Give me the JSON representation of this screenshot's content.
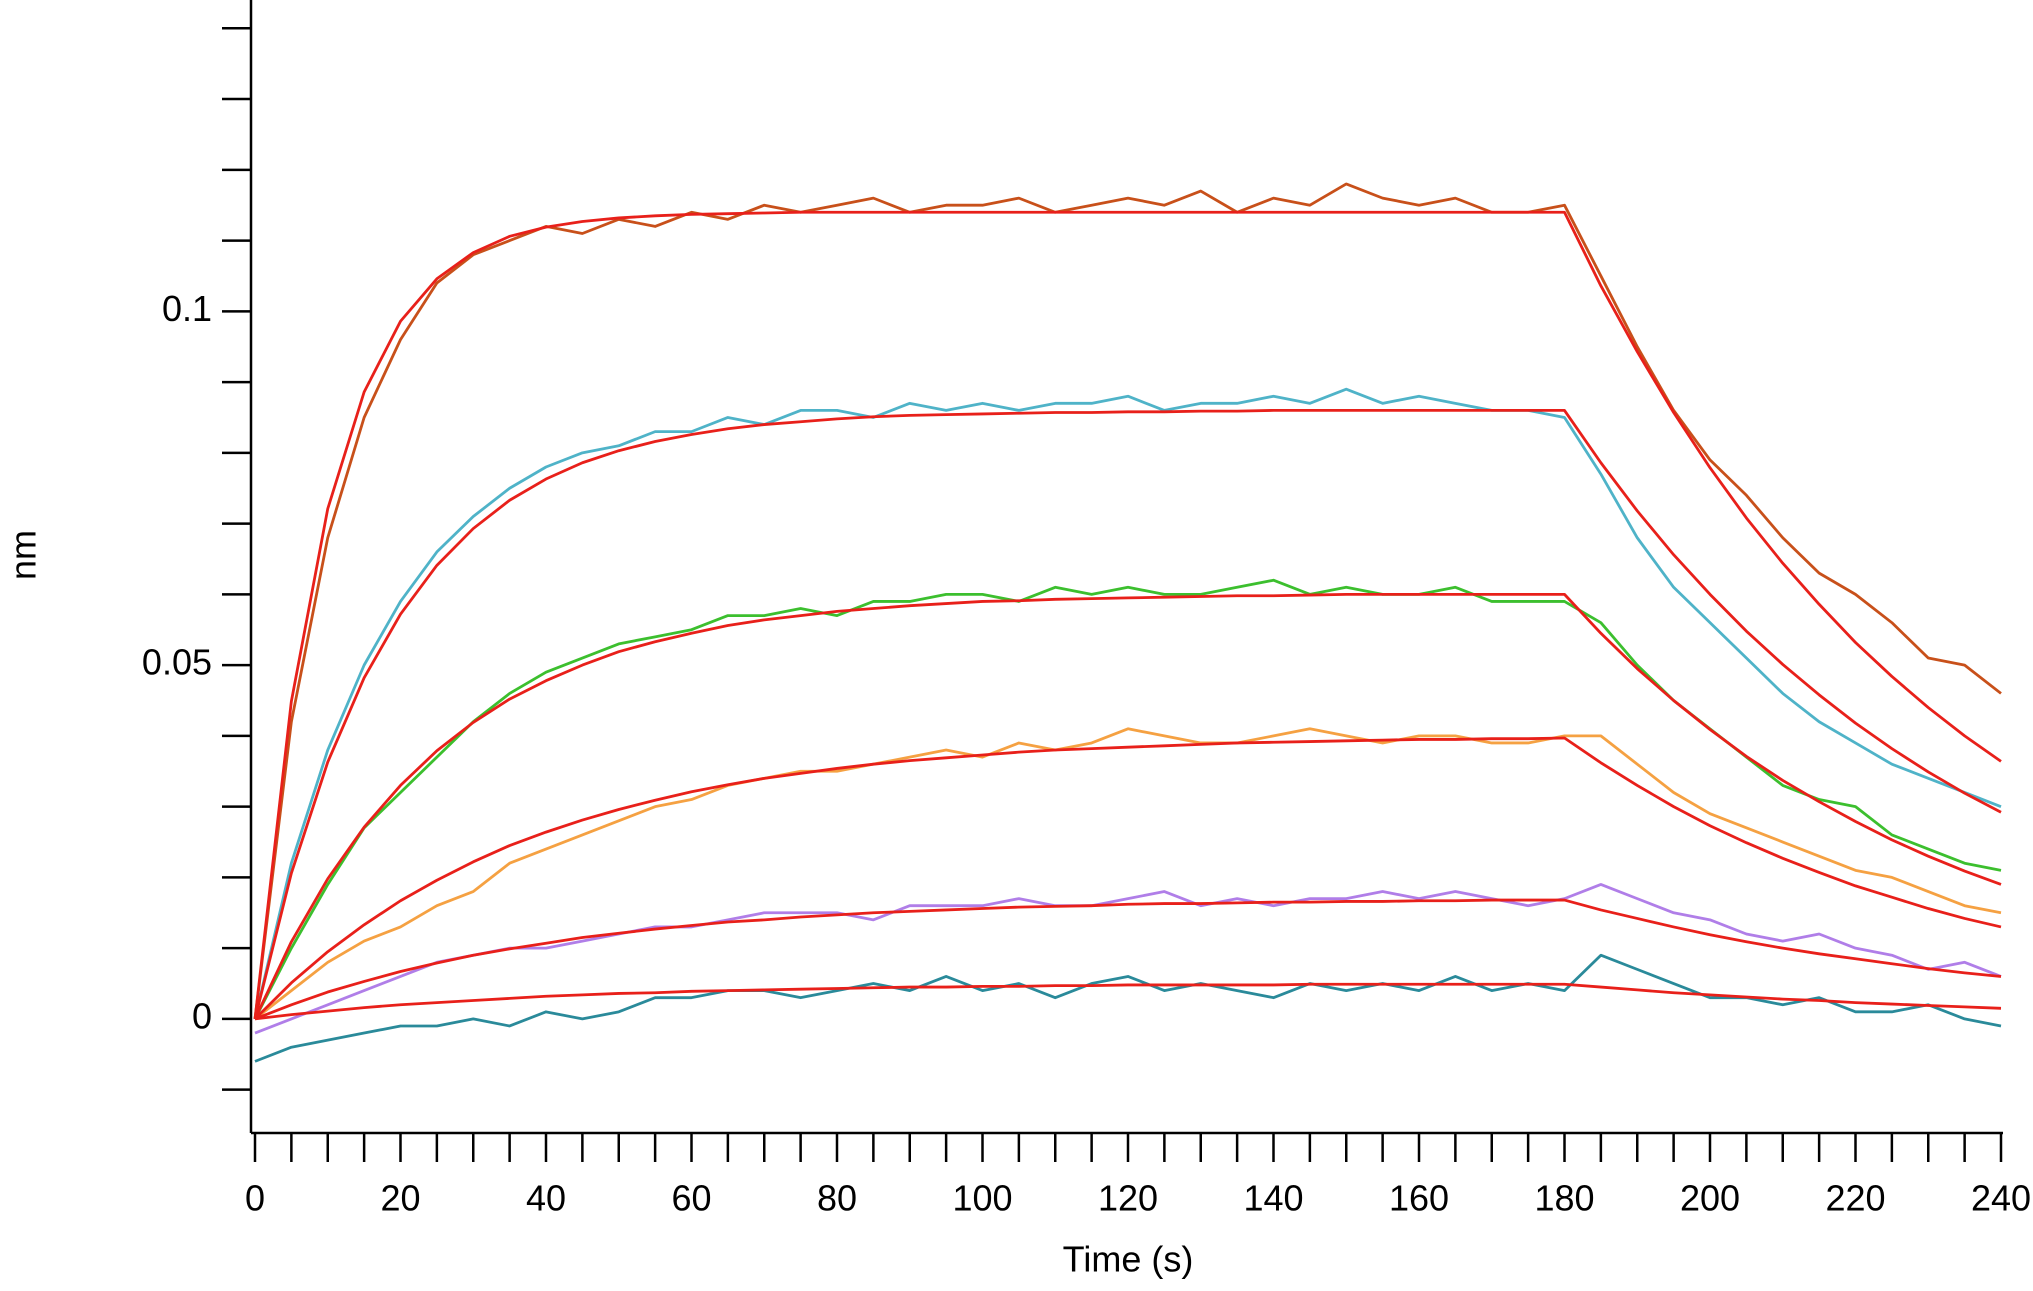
{
  "chart_data": {
    "type": "line",
    "xlabel": "Time (s)",
    "ylabel": "nm",
    "x": [
      0,
      5,
      10,
      15,
      20,
      25,
      30,
      35,
      40,
      45,
      50,
      55,
      60,
      65,
      70,
      75,
      80,
      85,
      90,
      95,
      100,
      105,
      110,
      115,
      120,
      125,
      130,
      135,
      140,
      145,
      150,
      155,
      160,
      165,
      170,
      175,
      180,
      185,
      190,
      195,
      200,
      205,
      210,
      215,
      220,
      225,
      230,
      235,
      240
    ],
    "xlim": [
      0,
      240
    ],
    "ylim": [
      -0.0157,
      0.144
    ],
    "xticks": [
      0,
      20,
      40,
      60,
      80,
      100,
      120,
      140,
      160,
      180,
      200,
      220,
      240
    ],
    "yticks": [
      0,
      0.05,
      0.1
    ],
    "x_minor_ticks": [
      5,
      10,
      15,
      25,
      30,
      35,
      45,
      50,
      55,
      65,
      70,
      75,
      85,
      90,
      95,
      105,
      110,
      115,
      125,
      130,
      135,
      145,
      150,
      155,
      165,
      170,
      175,
      185,
      190,
      195,
      205,
      210,
      215,
      225,
      230,
      235
    ],
    "y_minor_ticks": [
      -0.01,
      0.01,
      0.02,
      0.03,
      0.04,
      0.06,
      0.07,
      0.08,
      0.09,
      0.11,
      0.12,
      0.13,
      0.14
    ],
    "series": [
      {
        "color": "#c8501a",
        "values": [
          0,
          0.042,
          0.068,
          0.085,
          0.096,
          0.104,
          0.108,
          0.11,
          0.112,
          0.111,
          0.113,
          0.112,
          0.114,
          0.113,
          0.115,
          0.114,
          0.115,
          0.116,
          0.114,
          0.115,
          0.115,
          0.116,
          0.114,
          0.115,
          0.116,
          0.115,
          0.117,
          0.114,
          0.116,
          0.115,
          0.118,
          0.116,
          0.115,
          0.116,
          0.114,
          0.114,
          0.115,
          0.105,
          0.095,
          0.086,
          0.079,
          0.074,
          0.068,
          0.063,
          0.06,
          0.056,
          0.051,
          0.05,
          0.046
        ]
      },
      {
        "color": "#4fb3c8",
        "values": [
          0,
          0.022,
          0.038,
          0.05,
          0.059,
          0.066,
          0.071,
          0.075,
          0.078,
          0.08,
          0.081,
          0.083,
          0.083,
          0.085,
          0.084,
          0.086,
          0.086,
          0.085,
          0.087,
          0.086,
          0.087,
          0.086,
          0.087,
          0.087,
          0.088,
          0.086,
          0.087,
          0.087,
          0.088,
          0.087,
          0.089,
          0.087,
          0.088,
          0.087,
          0.086,
          0.086,
          0.085,
          0.077,
          0.068,
          0.061,
          0.056,
          0.051,
          0.046,
          0.042,
          0.039,
          0.036,
          0.034,
          0.032,
          0.03
        ]
      },
      {
        "color": "#3cbf2e",
        "values": [
          0,
          0.01,
          0.019,
          0.027,
          0.032,
          0.037,
          0.042,
          0.046,
          0.049,
          0.051,
          0.053,
          0.054,
          0.055,
          0.057,
          0.057,
          0.058,
          0.057,
          0.059,
          0.059,
          0.06,
          0.06,
          0.059,
          0.061,
          0.06,
          0.061,
          0.06,
          0.06,
          0.061,
          0.062,
          0.06,
          0.061,
          0.06,
          0.06,
          0.061,
          0.059,
          0.059,
          0.059,
          0.056,
          0.05,
          0.045,
          0.041,
          0.037,
          0.033,
          0.031,
          0.03,
          0.026,
          0.024,
          0.022,
          0.021
        ]
      },
      {
        "color": "#f5a142",
        "values": [
          0,
          0.004,
          0.008,
          0.011,
          0.013,
          0.016,
          0.018,
          0.022,
          0.024,
          0.026,
          0.028,
          0.03,
          0.031,
          0.033,
          0.034,
          0.035,
          0.035,
          0.036,
          0.037,
          0.038,
          0.037,
          0.039,
          0.038,
          0.039,
          0.041,
          0.04,
          0.039,
          0.039,
          0.04,
          0.041,
          0.04,
          0.039,
          0.04,
          0.04,
          0.039,
          0.039,
          0.04,
          0.04,
          0.036,
          0.032,
          0.029,
          0.027,
          0.025,
          0.023,
          0.021,
          0.02,
          0.018,
          0.016,
          0.015
        ]
      },
      {
        "color": "#b07ee8",
        "values": [
          -0.002,
          0.0,
          0.002,
          0.004,
          0.006,
          0.008,
          0.009,
          0.01,
          0.01,
          0.011,
          0.012,
          0.013,
          0.013,
          0.014,
          0.015,
          0.015,
          0.015,
          0.014,
          0.016,
          0.016,
          0.016,
          0.017,
          0.016,
          0.016,
          0.017,
          0.018,
          0.016,
          0.017,
          0.016,
          0.017,
          0.017,
          0.018,
          0.017,
          0.018,
          0.017,
          0.016,
          0.017,
          0.019,
          0.017,
          0.015,
          0.014,
          0.012,
          0.011,
          0.012,
          0.01,
          0.009,
          0.007,
          0.008,
          0.006
        ]
      },
      {
        "color": "#2a8a9a",
        "values": [
          -0.006,
          -0.004,
          -0.003,
          -0.002,
          -0.001,
          -0.001,
          0.0,
          -0.001,
          0.001,
          0.0,
          0.001,
          0.003,
          0.003,
          0.004,
          0.004,
          0.003,
          0.004,
          0.005,
          0.004,
          0.006,
          0.004,
          0.005,
          0.003,
          0.005,
          0.006,
          0.004,
          0.005,
          0.004,
          0.003,
          0.005,
          0.004,
          0.005,
          0.004,
          0.006,
          0.004,
          0.005,
          0.004,
          0.009,
          0.007,
          0.005,
          0.003,
          0.003,
          0.002,
          0.003,
          0.001,
          0.001,
          0.002,
          0.0,
          -0.001
        ]
      },
      {
        "color": "#e8201a",
        "values": [
          0,
          0.0449,
          0.0721,
          0.0886,
          0.0986,
          0.1046,
          0.1083,
          0.1106,
          0.1119,
          0.1127,
          0.1132,
          0.1135,
          0.1137,
          0.1138,
          0.1139,
          0.114,
          0.114,
          0.114,
          0.114,
          0.114,
          0.114,
          0.114,
          0.114,
          0.114,
          0.114,
          0.114,
          0.114,
          0.114,
          0.114,
          0.114,
          0.114,
          0.114,
          0.114,
          0.114,
          0.114,
          0.114,
          0.114,
          0.1036,
          0.0943,
          0.0857,
          0.0779,
          0.0708,
          0.0644,
          0.0586,
          0.0532,
          0.0484,
          0.044,
          0.04,
          0.0364
        ]
      },
      {
        "color": "#e8201a",
        "values": [
          0,
          0.0206,
          0.0363,
          0.0482,
          0.0572,
          0.0641,
          0.0693,
          0.0733,
          0.0763,
          0.0786,
          0.0803,
          0.0816,
          0.0826,
          0.0834,
          0.084,
          0.0844,
          0.0848,
          0.0851,
          0.0853,
          0.0854,
          0.0855,
          0.0856,
          0.0857,
          0.0857,
          0.0858,
          0.0858,
          0.0859,
          0.0859,
          0.086,
          0.086,
          0.086,
          0.086,
          0.086,
          0.086,
          0.086,
          0.086,
          0.086,
          0.0786,
          0.0718,
          0.0656,
          0.06,
          0.0548,
          0.0501,
          0.0458,
          0.0418,
          0.0382,
          0.0349,
          0.0319,
          0.0292
        ]
      },
      {
        "color": "#e8201a",
        "values": [
          0,
          0.0109,
          0.0198,
          0.0271,
          0.033,
          0.0379,
          0.0419,
          0.0452,
          0.0478,
          0.05,
          0.0519,
          0.0533,
          0.0545,
          0.0556,
          0.0564,
          0.057,
          0.0576,
          0.058,
          0.0584,
          0.0587,
          0.059,
          0.0591,
          0.0593,
          0.0594,
          0.0595,
          0.0596,
          0.0597,
          0.0598,
          0.0598,
          0.0599,
          0.06,
          0.06,
          0.06,
          0.06,
          0.06,
          0.06,
          0.06,
          0.0545,
          0.0495,
          0.045,
          0.0409,
          0.0371,
          0.0337,
          0.0307,
          0.0279,
          0.0253,
          0.023,
          0.0209,
          0.019
        ]
      },
      {
        "color": "#e8201a",
        "values": [
          0,
          0.0051,
          0.0095,
          0.0133,
          0.0167,
          0.0196,
          0.0222,
          0.0245,
          0.0264,
          0.0281,
          0.0296,
          0.0309,
          0.0321,
          0.0331,
          0.034,
          0.0347,
          0.0354,
          0.036,
          0.0365,
          0.0369,
          0.0373,
          0.0377,
          0.038,
          0.0382,
          0.0384,
          0.0386,
          0.0388,
          0.039,
          0.0391,
          0.0392,
          0.0393,
          0.0394,
          0.0395,
          0.0395,
          0.0396,
          0.0396,
          0.0397,
          0.0362,
          0.033,
          0.03,
          0.0273,
          0.0249,
          0.0227,
          0.0207,
          0.0188,
          0.0172,
          0.0156,
          0.0142,
          0.013
        ]
      },
      {
        "color": "#e8201a",
        "values": [
          0,
          0.002,
          0.0038,
          0.0053,
          0.0067,
          0.0079,
          0.009,
          0.0099,
          0.0107,
          0.0115,
          0.0121,
          0.0127,
          0.0132,
          0.0137,
          0.014,
          0.0144,
          0.0147,
          0.015,
          0.0152,
          0.0154,
          0.0156,
          0.0158,
          0.0159,
          0.016,
          0.0162,
          0.0163,
          0.0163,
          0.0164,
          0.0165,
          0.0165,
          0.0166,
          0.0166,
          0.0167,
          0.0167,
          0.0168,
          0.0168,
          0.0168,
          0.0154,
          0.0142,
          0.013,
          0.0119,
          0.0109,
          0.01,
          0.0092,
          0.0085,
          0.0078,
          0.0071,
          0.0065,
          0.006
        ]
      },
      {
        "color": "#e8201a",
        "values": [
          0,
          0.0006,
          0.0011,
          0.0016,
          0.002,
          0.0023,
          0.0026,
          0.0029,
          0.0032,
          0.0034,
          0.0036,
          0.0037,
          0.0039,
          0.004,
          0.0041,
          0.0042,
          0.0043,
          0.0044,
          0.0045,
          0.0045,
          0.0046,
          0.0046,
          0.0047,
          0.0047,
          0.0048,
          0.0048,
          0.0048,
          0.0048,
          0.0048,
          0.0049,
          0.0049,
          0.0049,
          0.0049,
          0.0049,
          0.0049,
          0.0049,
          0.0049,
          0.0045,
          0.0041,
          0.0037,
          0.0034,
          0.0031,
          0.0028,
          0.0026,
          0.0023,
          0.0021,
          0.0019,
          0.0017,
          0.0015
        ]
      }
    ]
  }
}
